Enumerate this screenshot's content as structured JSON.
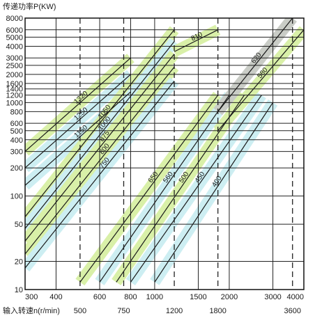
{
  "chart_data": {
    "type": "line",
    "title": "",
    "ylabel": "传递功率P(KW)",
    "xlabel": "输入转速n(r/min)",
    "x_scale": "log",
    "y_scale": "log",
    "xlim": [
      300,
      4000
    ],
    "ylim": [
      10,
      8000
    ],
    "x_ticks": [
      300,
      400,
      600,
      800,
      1000,
      1500,
      2000,
      3000,
      4000
    ],
    "x_tick_labels": [
      "300",
      "400",
      "600",
      "800",
      "1000",
      "1500",
      "2000",
      "3000",
      "4000"
    ],
    "x_ticks_secondary": [
      500,
      750,
      1200,
      1800,
      3600
    ],
    "x_ticks_secondary_labels": [
      "500",
      "750",
      "1200",
      "1800",
      "3600"
    ],
    "y_ticks": [
      10,
      20,
      50,
      100,
      200,
      300,
      400,
      500,
      600,
      800,
      1000,
      1200,
      1400,
      1600,
      2000,
      2500,
      3000,
      4000,
      5000,
      6000,
      8000
    ],
    "y_tick_labels": [
      "10",
      "20",
      "50",
      "100",
      "200",
      "300",
      "400",
      "500",
      "600",
      "800",
      "1000",
      "1200",
      "1400",
      "1600",
      "2000",
      "2500",
      "3000",
      "4000",
      "5000",
      "6000",
      "8000"
    ],
    "grid": true,
    "colors": {
      "green": "#d9f0a8",
      "blue": "#cdeef2",
      "grey": "#c9ccc6",
      "line": "#1a1a1a"
    },
    "series": [
      {
        "name": "1320",
        "color": "green",
        "points": [
          [
            300,
            300
          ],
          [
            800,
            3000
          ]
        ]
      },
      {
        "name": "1250",
        "color": "blue",
        "points": [
          [
            300,
            200
          ],
          [
            800,
            2000
          ]
        ]
      },
      {
        "name": "1150",
        "color": "blue",
        "points": [
          [
            300,
            130
          ],
          [
            800,
            1300
          ]
        ]
      },
      {
        "name": "1050",
        "color": "green",
        "points": [
          [
            300,
            60
          ],
          [
            1200,
            6000
          ]
        ]
      },
      {
        "name": "1000",
        "color": "blue",
        "points": [
          [
            300,
            45
          ],
          [
            1200,
            4500
          ]
        ]
      },
      {
        "name": "875",
        "color": "green",
        "points": [
          [
            300,
            33
          ],
          [
            1200,
            3300
          ]
        ]
      },
      {
        "name": "800",
        "color": "green",
        "points": [
          [
            300,
            24
          ],
          [
            1200,
            2400
          ]
        ]
      },
      {
        "name": "750",
        "color": "blue",
        "points": [
          [
            300,
            17
          ],
          [
            1200,
            1700
          ]
        ]
      },
      {
        "name": "810",
        "color": "green",
        "points": [
          [
            1200,
            3500
          ],
          [
            1800,
            6000
          ]
        ]
      },
      {
        "name": "650",
        "color": "green",
        "points": [
          [
            500,
            12
          ],
          [
            1800,
            1200
          ]
        ]
      },
      {
        "name": "560",
        "color": "blue",
        "points": [
          [
            600,
            12
          ],
          [
            2000,
            1200
          ]
        ]
      },
      {
        "name": "500",
        "color": "green",
        "points": [
          [
            700,
            12
          ],
          [
            2300,
            1200
          ]
        ]
      },
      {
        "name": "450",
        "color": "blue",
        "points": [
          [
            800,
            12
          ],
          [
            2700,
            1200
          ]
        ]
      },
      {
        "name": "400",
        "color": "blue",
        "points": [
          [
            1000,
            12
          ],
          [
            3000,
            1000
          ]
        ]
      },
      {
        "name": "620",
        "color": "grey",
        "points": [
          [
            1800,
            800
          ],
          [
            3600,
            8000
          ]
        ]
      },
      {
        "name": "580",
        "color": "green",
        "points": [
          [
            1800,
            500
          ],
          [
            4000,
            6000
          ]
        ]
      }
    ]
  }
}
